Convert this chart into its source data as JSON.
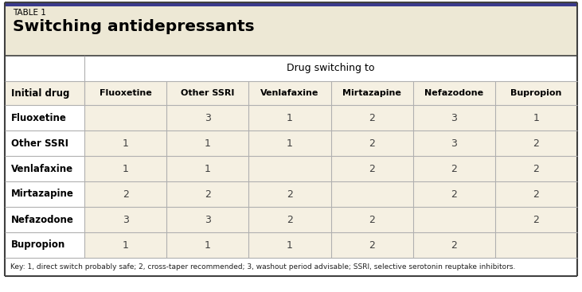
{
  "table_label": "TABLE 1",
  "title": "Switching antidepressants",
  "header_group": "Drug switching to",
  "col_header_label": "Initial drug",
  "col_headers": [
    "Fluoxetine",
    "Other SSRI",
    "Venlafaxine",
    "Mirtazapine",
    "Nefazodone",
    "Bupropion"
  ],
  "row_headers": [
    "Fluoxetine",
    "Other SSRI",
    "Venlafaxine",
    "Mirtazapine",
    "Nefazodone",
    "Bupropion"
  ],
  "table_data": [
    [
      "",
      "3",
      "1",
      "2",
      "3",
      "1"
    ],
    [
      "1",
      "1",
      "1",
      "2",
      "3",
      "2"
    ],
    [
      "1",
      "1",
      "",
      "2",
      "2",
      "2"
    ],
    [
      "2",
      "2",
      "2",
      "",
      "2",
      "2"
    ],
    [
      "3",
      "3",
      "2",
      "2",
      "",
      "2"
    ],
    [
      "1",
      "1",
      "1",
      "2",
      "2",
      ""
    ]
  ],
  "key_text": "Key: 1, direct switch probably safe; 2, cross-taper recommended; 3, washout period advisable; SSRI, selective serotonin reuptake inhibitors.",
  "bg_title": "#ede8d5",
  "bg_group_row": "#ffffff",
  "bg_colheader": "#f5f0e2",
  "bg_data_row_left": "#ffffff",
  "bg_data_row_right": "#f5f0e2",
  "bg_key": "#ffffff",
  "border_top_color": "#3a3a8c",
  "border_outer_color": "#404040",
  "border_inner_color": "#b0b0b0",
  "title_label_color": "#000000",
  "header_text_color": "#000000",
  "cell_text_color": "#404040",
  "key_text_color": "#202020"
}
